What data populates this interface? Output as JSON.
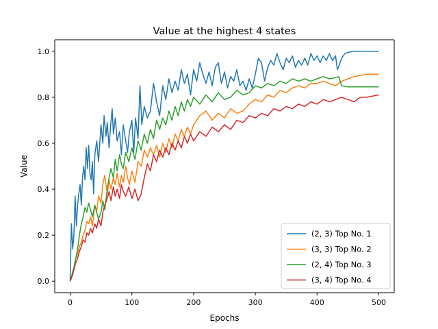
{
  "chart_data": {
    "type": "line",
    "title": "Value at the highest 4 states",
    "xlabel": "Epochs",
    "ylabel": "Value",
    "xlim": [
      -25,
      525
    ],
    "ylim": [
      -0.05,
      1.05
    ],
    "x_ticks": [
      0,
      100,
      200,
      300,
      400,
      500
    ],
    "y_ticks": [
      0.0,
      0.2,
      0.4,
      0.6,
      0.8,
      1.0
    ],
    "grid": false,
    "legend_position": "lower-right",
    "series": [
      {
        "name": "(2, 3) Top No. 1",
        "color": "#1f77b4",
        "x": [
          0,
          2,
          4,
          6,
          8,
          10,
          12,
          14,
          16,
          18,
          20,
          22,
          24,
          26,
          28,
          30,
          32,
          34,
          36,
          38,
          40,
          43,
          46,
          50,
          53,
          55,
          58,
          60,
          63,
          65,
          68,
          70,
          73,
          76,
          80,
          83,
          86,
          90,
          93,
          96,
          100,
          103,
          106,
          110,
          113,
          116,
          120,
          125,
          130,
          135,
          140,
          145,
          150,
          155,
          160,
          165,
          170,
          175,
          180,
          185,
          190,
          195,
          200,
          205,
          210,
          215,
          220,
          225,
          230,
          235,
          240,
          245,
          250,
          255,
          260,
          265,
          270,
          275,
          280,
          285,
          290,
          295,
          300,
          305,
          310,
          315,
          320,
          325,
          330,
          335,
          340,
          345,
          350,
          355,
          360,
          365,
          370,
          375,
          380,
          385,
          390,
          395,
          400,
          405,
          410,
          415,
          420,
          425,
          430,
          433,
          436,
          440,
          445,
          450,
          460,
          470,
          480,
          490,
          500
        ],
        "y": [
          0.0,
          0.25,
          0.14,
          0.2,
          0.37,
          0.24,
          0.33,
          0.38,
          0.42,
          0.33,
          0.45,
          0.5,
          0.44,
          0.58,
          0.49,
          0.59,
          0.47,
          0.44,
          0.52,
          0.38,
          0.55,
          0.61,
          0.52,
          0.68,
          0.6,
          0.72,
          0.63,
          0.69,
          0.58,
          0.66,
          0.75,
          0.64,
          0.71,
          0.61,
          0.65,
          0.55,
          0.68,
          0.61,
          0.56,
          0.65,
          0.7,
          0.56,
          0.71,
          0.62,
          0.85,
          0.68,
          0.76,
          0.71,
          0.74,
          0.86,
          0.78,
          0.72,
          0.85,
          0.79,
          0.88,
          0.82,
          0.87,
          0.83,
          0.92,
          0.86,
          0.9,
          0.81,
          0.92,
          0.87,
          0.95,
          0.9,
          0.86,
          0.91,
          0.85,
          0.93,
          0.95,
          0.86,
          0.91,
          0.84,
          0.89,
          0.87,
          0.92,
          0.85,
          0.87,
          0.83,
          0.88,
          0.84,
          0.9,
          0.97,
          0.95,
          0.87,
          0.93,
          0.96,
          0.94,
          0.99,
          0.95,
          0.92,
          0.97,
          0.95,
          0.98,
          0.93,
          0.96,
          0.94,
          0.97,
          0.94,
          0.99,
          0.96,
          0.98,
          0.95,
          0.98,
          0.96,
          0.99,
          0.96,
          0.98,
          0.92,
          0.94,
          0.97,
          0.99,
          0.995,
          1.0,
          1.0,
          1.0,
          1.0,
          1.0
        ]
      },
      {
        "name": "(3, 3) Top No. 2",
        "color": "#ff7f0e",
        "x": [
          0,
          3,
          6,
          9,
          12,
          15,
          18,
          21,
          24,
          27,
          30,
          33,
          36,
          40,
          43,
          46,
          50,
          53,
          56,
          60,
          63,
          66,
          70,
          73,
          76,
          80,
          83,
          86,
          90,
          93,
          96,
          100,
          105,
          110,
          115,
          120,
          125,
          130,
          135,
          140,
          145,
          150,
          155,
          160,
          165,
          170,
          175,
          180,
          185,
          190,
          195,
          200,
          210,
          220,
          230,
          240,
          250,
          260,
          270,
          280,
          290,
          300,
          310,
          320,
          330,
          340,
          350,
          360,
          370,
          380,
          390,
          400,
          410,
          420,
          430,
          440,
          450,
          460,
          470,
          480,
          490,
          500
        ],
        "y": [
          0.0,
          0.02,
          0.05,
          0.1,
          0.12,
          0.15,
          0.17,
          0.2,
          0.22,
          0.26,
          0.25,
          0.28,
          0.24,
          0.33,
          0.3,
          0.37,
          0.34,
          0.42,
          0.46,
          0.38,
          0.44,
          0.4,
          0.45,
          0.42,
          0.47,
          0.41,
          0.46,
          0.43,
          0.5,
          0.45,
          0.42,
          0.48,
          0.43,
          0.52,
          0.5,
          0.57,
          0.54,
          0.58,
          0.55,
          0.59,
          0.54,
          0.6,
          0.56,
          0.62,
          0.58,
          0.64,
          0.61,
          0.66,
          0.63,
          0.67,
          0.64,
          0.68,
          0.72,
          0.74,
          0.7,
          0.73,
          0.71,
          0.75,
          0.73,
          0.74,
          0.77,
          0.79,
          0.78,
          0.81,
          0.8,
          0.83,
          0.82,
          0.84,
          0.85,
          0.84,
          0.86,
          0.86,
          0.87,
          0.86,
          0.85,
          0.87,
          0.88,
          0.89,
          0.895,
          0.9,
          0.9,
          0.9
        ]
      },
      {
        "name": "(2, 4) Top No. 3",
        "color": "#2ca02c",
        "x": [
          0,
          3,
          6,
          9,
          12,
          15,
          18,
          21,
          24,
          27,
          30,
          33,
          36,
          40,
          43,
          46,
          50,
          53,
          56,
          60,
          63,
          66,
          70,
          73,
          76,
          80,
          83,
          86,
          90,
          95,
          100,
          105,
          110,
          115,
          120,
          125,
          130,
          135,
          140,
          145,
          150,
          155,
          160,
          165,
          170,
          175,
          180,
          185,
          190,
          195,
          200,
          210,
          220,
          230,
          240,
          250,
          260,
          270,
          280,
          290,
          300,
          310,
          320,
          330,
          340,
          350,
          360,
          370,
          380,
          390,
          400,
          410,
          420,
          430,
          435,
          440,
          450,
          460,
          470,
          480,
          490,
          500
        ],
        "y": [
          0.0,
          0.03,
          0.06,
          0.1,
          0.14,
          0.2,
          0.25,
          0.28,
          0.32,
          0.3,
          0.34,
          0.31,
          0.28,
          0.33,
          0.3,
          0.27,
          0.3,
          0.35,
          0.31,
          0.4,
          0.45,
          0.49,
          0.45,
          0.53,
          0.48,
          0.55,
          0.51,
          0.49,
          0.56,
          0.52,
          0.58,
          0.53,
          0.61,
          0.57,
          0.64,
          0.6,
          0.66,
          0.62,
          0.7,
          0.66,
          0.71,
          0.68,
          0.74,
          0.7,
          0.76,
          0.72,
          0.78,
          0.74,
          0.79,
          0.76,
          0.8,
          0.77,
          0.81,
          0.78,
          0.82,
          0.79,
          0.8,
          0.83,
          0.81,
          0.82,
          0.85,
          0.84,
          0.86,
          0.85,
          0.87,
          0.86,
          0.88,
          0.87,
          0.88,
          0.87,
          0.88,
          0.89,
          0.88,
          0.885,
          0.89,
          0.85,
          0.845,
          0.845,
          0.845,
          0.845,
          0.845,
          0.845
        ]
      },
      {
        "name": "(3, 4) Top No. 4",
        "color": "#d62728",
        "x": [
          0,
          3,
          6,
          9,
          12,
          15,
          18,
          21,
          24,
          27,
          30,
          33,
          36,
          40,
          43,
          46,
          50,
          53,
          56,
          60,
          63,
          66,
          70,
          73,
          76,
          80,
          83,
          86,
          90,
          95,
          100,
          105,
          110,
          115,
          120,
          125,
          130,
          135,
          140,
          145,
          150,
          155,
          160,
          165,
          170,
          175,
          180,
          185,
          190,
          195,
          200,
          210,
          220,
          230,
          240,
          250,
          260,
          270,
          280,
          290,
          300,
          310,
          320,
          330,
          340,
          350,
          360,
          370,
          380,
          390,
          400,
          410,
          420,
          430,
          440,
          450,
          460,
          470,
          480,
          490,
          500
        ],
        "y": [
          0.0,
          0.02,
          0.05,
          0.08,
          0.1,
          0.13,
          0.15,
          0.18,
          0.17,
          0.21,
          0.2,
          0.23,
          0.21,
          0.25,
          0.23,
          0.27,
          0.24,
          0.3,
          0.33,
          0.36,
          0.39,
          0.35,
          0.41,
          0.37,
          0.4,
          0.36,
          0.42,
          0.39,
          0.37,
          0.41,
          0.36,
          0.4,
          0.35,
          0.38,
          0.45,
          0.51,
          0.48,
          0.55,
          0.52,
          0.57,
          0.54,
          0.58,
          0.55,
          0.6,
          0.57,
          0.61,
          0.58,
          0.63,
          0.6,
          0.64,
          0.61,
          0.65,
          0.63,
          0.67,
          0.65,
          0.68,
          0.66,
          0.7,
          0.69,
          0.72,
          0.71,
          0.73,
          0.72,
          0.75,
          0.74,
          0.76,
          0.75,
          0.77,
          0.76,
          0.78,
          0.77,
          0.79,
          0.78,
          0.79,
          0.8,
          0.79,
          0.78,
          0.8,
          0.8,
          0.805,
          0.81
        ]
      }
    ]
  }
}
